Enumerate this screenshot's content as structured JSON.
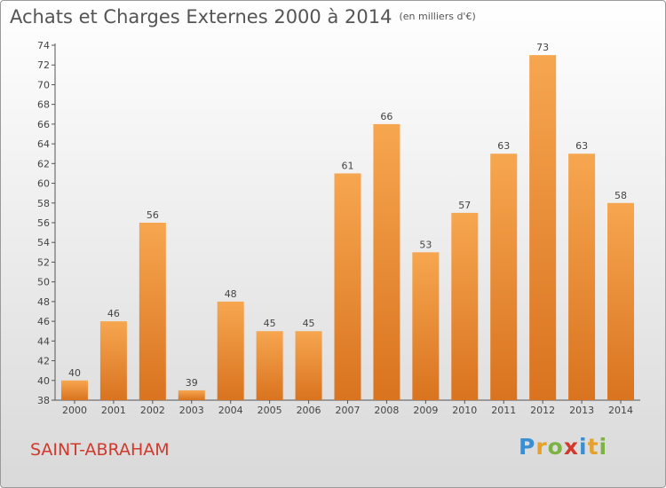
{
  "header": {
    "title": "Achats et Charges Externes 2000 à 2014",
    "subtitle": "(en milliers d'€)"
  },
  "footer": {
    "commune": "SAINT-ABRAHAM",
    "logo_text": "Proxiti"
  },
  "colors": {
    "bar_top": "#f7a650",
    "bar_bottom": "#d9731f",
    "commune_text": "#d0392b",
    "logo_letters": [
      "#3b8fd1",
      "#e5a12c",
      "#7cb342",
      "#d0392b",
      "#3b8fd1",
      "#e5a12c",
      "#7cb342"
    ]
  },
  "chart_data": {
    "type": "bar",
    "categories": [
      "2000",
      "2001",
      "2002",
      "2003",
      "2004",
      "2005",
      "2006",
      "2007",
      "2008",
      "2009",
      "2010",
      "2011",
      "2012",
      "2013",
      "2014"
    ],
    "values": [
      40,
      46,
      56,
      39,
      48,
      45,
      45,
      61,
      66,
      53,
      57,
      63,
      73,
      63,
      58
    ],
    "title": "Achats et Charges Externes 2000 à 2014",
    "ylim": [
      38,
      74
    ],
    "yticks": [
      38,
      40,
      42,
      44,
      46,
      48,
      50,
      52,
      54,
      56,
      58,
      60,
      62,
      64,
      66,
      68,
      70,
      72,
      74
    ],
    "grid": false,
    "data_labels": true
  }
}
